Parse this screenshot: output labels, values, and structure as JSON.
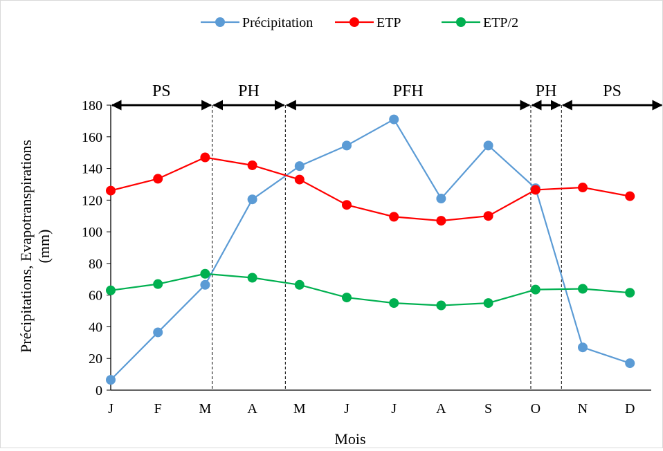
{
  "chart_data": {
    "type": "line",
    "title": "",
    "xlabel": "Mois",
    "ylabel_line1": "Précipitations, Evapotranspirations",
    "ylabel_line2": "(mm)",
    "categories": [
      "J",
      "F",
      "M",
      "A",
      "M",
      "J",
      "J",
      "A",
      "S",
      "O",
      "N",
      "D"
    ],
    "ylim": [
      0,
      180
    ],
    "yticks": [
      0,
      20,
      40,
      60,
      80,
      100,
      120,
      140,
      160,
      180
    ],
    "grid": false,
    "legend_position": "top-center",
    "series": [
      {
        "name": "Précipitation",
        "color": "#5b9bd5",
        "values": [
          6.5,
          36.5,
          66.5,
          120.5,
          141.5,
          154.5,
          171,
          121,
          154.5,
          127.5,
          27,
          17
        ]
      },
      {
        "name": "ETP",
        "color": "#ff0000",
        "values": [
          126,
          133.5,
          147,
          142,
          133,
          117,
          109.5,
          107,
          110,
          126.5,
          128,
          122.5
        ]
      },
      {
        "name": "ETP/2",
        "color": "#00b050",
        "values": [
          63,
          67,
          73.5,
          71,
          66.5,
          58.5,
          55,
          53.5,
          55,
          63.5,
          64,
          61.5
        ]
      }
    ],
    "period_boundaries": [
      2.15,
      3.7,
      8.9,
      9.55
    ],
    "periods": [
      {
        "label": "PS",
        "from": 0,
        "to": 2.15
      },
      {
        "label": "PH",
        "from": 2.15,
        "to": 3.7
      },
      {
        "label": "PFH",
        "from": 3.7,
        "to": 8.9
      },
      {
        "label": "PH",
        "from": 8.9,
        "to": 9.55
      },
      {
        "label": "PS",
        "from": 9.55,
        "to": 11.7
      }
    ]
  }
}
